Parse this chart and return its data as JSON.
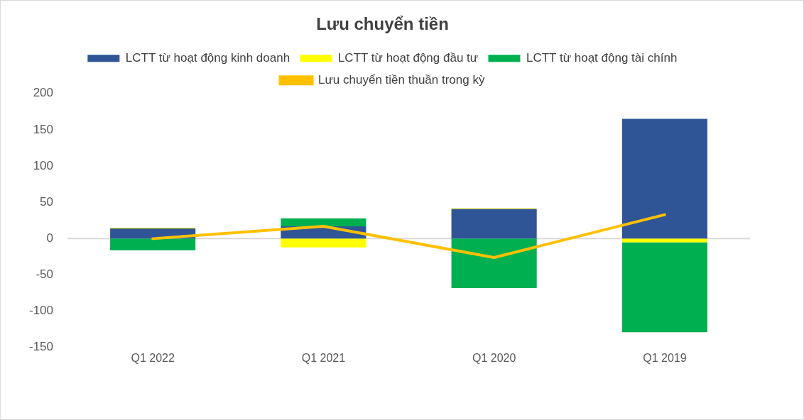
{
  "chart_data": {
    "type": "bar",
    "title": "Lưu chuyển tiền",
    "stacked": true,
    "categories": [
      "Q1 2022",
      "Q1 2021",
      "Q1 2020",
      "Q1 2019"
    ],
    "series": [
      {
        "name": "LCTT từ hoạt động kinh doanh",
        "color": "#2f5597",
        "values": [
          14,
          17,
          41,
          165
        ]
      },
      {
        "name": "LCTT từ hoạt động đầu tư",
        "color": "#ffff00",
        "values": [
          1,
          -12,
          1,
          -5
        ]
      },
      {
        "name": "LCTT từ hoạt động tài chính",
        "color": "#00b050",
        "values": [
          -16,
          11,
          -68,
          -124
        ]
      },
      {
        "name": "Lưu chuyển tiền thuần trong kỳ",
        "type": "line",
        "color": "#ffc000",
        "values": [
          0,
          17,
          -26,
          33
        ]
      }
    ],
    "ylim": [
      -150,
      200
    ],
    "yticks": [
      -150,
      -100,
      -50,
      0,
      50,
      100,
      150,
      200
    ],
    "grid": false,
    "ref_lines": [
      {
        "axis": "y",
        "value": 0,
        "color": "#d9d9d9"
      }
    ],
    "legend": "top",
    "marker": "none",
    "line_style": "solid"
  }
}
